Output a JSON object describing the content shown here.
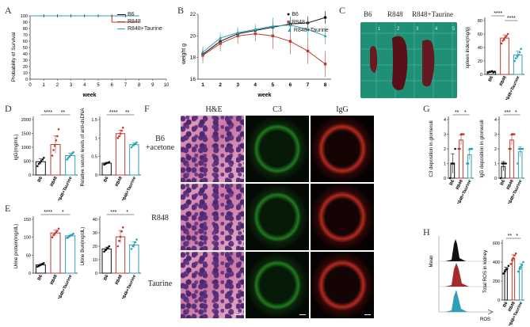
{
  "panels": {
    "A": "A",
    "B": "B",
    "C": "C",
    "D": "D",
    "E": "E",
    "F": "F",
    "G": "G",
    "H": "H"
  },
  "colors": {
    "b6": "#111111",
    "r848": "#c0392b",
    "taurine": "#2e9fb5"
  },
  "legend": {
    "b6": "B6",
    "r848": "R848",
    "taurine": "R848+Taurine"
  },
  "group_ticks": [
    "B6",
    "R848",
    "R848+Taurine"
  ],
  "sig": {
    "four": "****",
    "three": "***",
    "two": "**",
    "one": "*"
  },
  "chart_data": [
    {
      "id": "A",
      "type": "line",
      "title": "",
      "xlabel": "week",
      "ylabel": "Probability of Survival",
      "x": [
        0,
        1,
        2,
        3,
        4,
        5,
        6,
        7,
        8,
        9,
        10
      ],
      "ylim": [
        0,
        100
      ],
      "yticks": [
        0,
        10,
        20,
        30,
        40,
        50,
        60,
        70,
        80,
        90,
        100
      ],
      "series": [
        {
          "name": "B6",
          "x": [
            0,
            8
          ],
          "values": [
            100,
            100
          ]
        },
        {
          "name": "R848",
          "x": [
            0,
            6,
            6,
            8
          ],
          "values": [
            100,
            100,
            90,
            90
          ]
        },
        {
          "name": "R848+Taurine",
          "x": [
            0,
            8
          ],
          "values": [
            100,
            100
          ]
        }
      ]
    },
    {
      "id": "B",
      "type": "line",
      "title": "",
      "xlabel": "week",
      "ylabel": "weight g",
      "x": [
        1,
        2,
        3,
        4,
        5,
        6,
        7,
        8
      ],
      "ylim": [
        16,
        22
      ],
      "yticks": [
        16,
        18,
        20,
        22
      ],
      "series": [
        {
          "name": "B6",
          "values": [
            18.3,
            19.5,
            20.2,
            20.5,
            20.8,
            21.1,
            21.2,
            21.7
          ]
        },
        {
          "name": "R848",
          "values": [
            18.2,
            19.3,
            20.0,
            20.2,
            20.0,
            19.5,
            18.6,
            17.4
          ]
        },
        {
          "name": "R848+Taurine",
          "values": [
            18.5,
            19.8,
            20.3,
            20.6,
            20.9,
            21.0,
            20.6,
            20.0
          ]
        }
      ]
    },
    {
      "id": "C",
      "type": "bar",
      "title": "",
      "xlabel": "",
      "ylabel": "spleen index(mg/g)",
      "ylim": [
        0,
        80
      ],
      "yticks": [
        0,
        20,
        40,
        60,
        80
      ],
      "categories": [
        "B6",
        "R848",
        "R848+Taurine"
      ],
      "values": [
        4,
        54,
        29
      ],
      "points": [
        [
          3,
          4,
          4,
          5,
          3,
          4
        ],
        [
          46,
          50,
          52,
          55,
          57,
          60
        ],
        [
          20,
          24,
          27,
          29,
          33,
          38
        ]
      ]
    },
    {
      "id": "D1",
      "type": "bar",
      "title": "",
      "xlabel": "",
      "ylabel": "IgG(mg/mL)",
      "ylim": [
        0,
        2000
      ],
      "yticks": [
        0,
        500,
        1000,
        1500,
        2000
      ],
      "categories": [
        "B6",
        "R848",
        "R848+Taurine"
      ],
      "values": [
        480,
        1100,
        700
      ],
      "points": [
        [
          320,
          400,
          450,
          500,
          560,
          620
        ],
        [
          700,
          900,
          1050,
          1250,
          1400,
          1650
        ],
        [
          560,
          620,
          680,
          720,
          780,
          820
        ]
      ]
    },
    {
      "id": "D2",
      "type": "bar",
      "title": "",
      "xlabel": "",
      "ylabel": "Relative serum levels of anti-dsDNA",
      "ylim": [
        0,
        1.5
      ],
      "yticks": [
        0.0,
        0.5,
        1.0,
        1.5
      ],
      "categories": [
        "B6",
        "R848",
        "R848+Taurine"
      ],
      "values": [
        0.32,
        1.12,
        0.82
      ],
      "points": [
        [
          0.28,
          0.3,
          0.32,
          0.33,
          0.35
        ],
        [
          1.0,
          1.05,
          1.12,
          1.2,
          1.28
        ],
        [
          0.75,
          0.8,
          0.83,
          0.85,
          0.88
        ]
      ]
    },
    {
      "id": "E1",
      "type": "bar",
      "title": "",
      "xlabel": "",
      "ylabel": "Urine protein(mg/dL)",
      "ylim": [
        0,
        150
      ],
      "yticks": [
        0,
        50,
        100,
        150
      ],
      "categories": [
        "B6",
        "R848",
        "R848+Taurine"
      ],
      "values": [
        23,
        112,
        104
      ],
      "points": [
        [
          18,
          20,
          22,
          24,
          26,
          28
        ],
        [
          100,
          106,
          110,
          114,
          118,
          124
        ],
        [
          98,
          100,
          103,
          105,
          107,
          110
        ]
      ]
    },
    {
      "id": "E2",
      "type": "bar",
      "title": "",
      "xlabel": "",
      "ylabel": "Urine Bun(mg/dL)",
      "ylim": [
        0,
        40
      ],
      "yticks": [
        0,
        10,
        20,
        30,
        40
      ],
      "categories": [
        "B6",
        "R848",
        "R848+Taurine"
      ],
      "values": [
        18,
        27,
        21
      ],
      "points": [
        [
          16,
          17,
          18,
          19,
          20
        ],
        [
          20,
          24,
          27,
          31,
          34
        ],
        [
          18,
          20,
          21,
          23,
          25
        ]
      ]
    },
    {
      "id": "G1",
      "type": "bar",
      "title": "",
      "xlabel": "",
      "ylabel": "C3 deposition in glomeruli",
      "ylim": [
        0,
        4
      ],
      "yticks": [
        0,
        1,
        2,
        3,
        4
      ],
      "categories": [
        "B6",
        "R848",
        "R848+Taurine"
      ],
      "values": [
        1.0,
        2.6,
        1.6
      ],
      "points": [
        [
          0,
          1,
          1,
          1,
          2
        ],
        [
          2,
          2,
          3,
          3,
          3
        ],
        [
          1,
          1,
          2,
          2,
          2
        ]
      ]
    },
    {
      "id": "G2",
      "type": "bar",
      "title": "",
      "xlabel": "",
      "ylabel": "IgG deposition in glomeruli",
      "ylim": [
        0,
        4
      ],
      "yticks": [
        0,
        1,
        2,
        3,
        4
      ],
      "categories": [
        "B6",
        "R848",
        "R848+Taurine"
      ],
      "values": [
        0.8,
        2.6,
        1.8
      ],
      "points": [
        [
          0,
          1,
          1,
          1,
          1
        ],
        [
          2,
          2,
          3,
          3,
          3
        ],
        [
          1,
          2,
          2,
          2,
          2
        ]
      ]
    },
    {
      "id": "H",
      "type": "bar",
      "title": "",
      "xlabel": "",
      "ylabel": "Total ROS in kidney",
      "ylim": [
        0,
        600
      ],
      "yticks": [
        0,
        200,
        400,
        600
      ],
      "categories": [
        "B6",
        "R848",
        "R848+Taurine"
      ],
      "values": [
        320,
        440,
        350
      ],
      "points": [
        [
          280,
          300,
          320,
          330,
          360
        ],
        [
          380,
          420,
          440,
          470,
          490
        ],
        [
          300,
          330,
          350,
          370,
          400
        ]
      ]
    },
    {
      "id": "H-flow",
      "type": "area",
      "title": "",
      "xlabel": "ROS",
      "ylabel": "Mean",
      "series": [
        {
          "name": "B6",
          "peak": 0.35
        },
        {
          "name": "R848",
          "peak": 0.4
        },
        {
          "name": "R848+Taurine",
          "peak": 0.33
        }
      ]
    }
  ],
  "c_photo": {
    "labels": [
      "B6",
      "R848",
      "R848+Taurine"
    ],
    "ruler_numbers": [
      "1",
      "2",
      "3",
      "4",
      "5"
    ]
  },
  "f_images": {
    "col_headers": [
      "H&E",
      "C3",
      "IgG"
    ],
    "row_labels": [
      "B6\n+acetone",
      "R848",
      "Taurine"
    ]
  }
}
